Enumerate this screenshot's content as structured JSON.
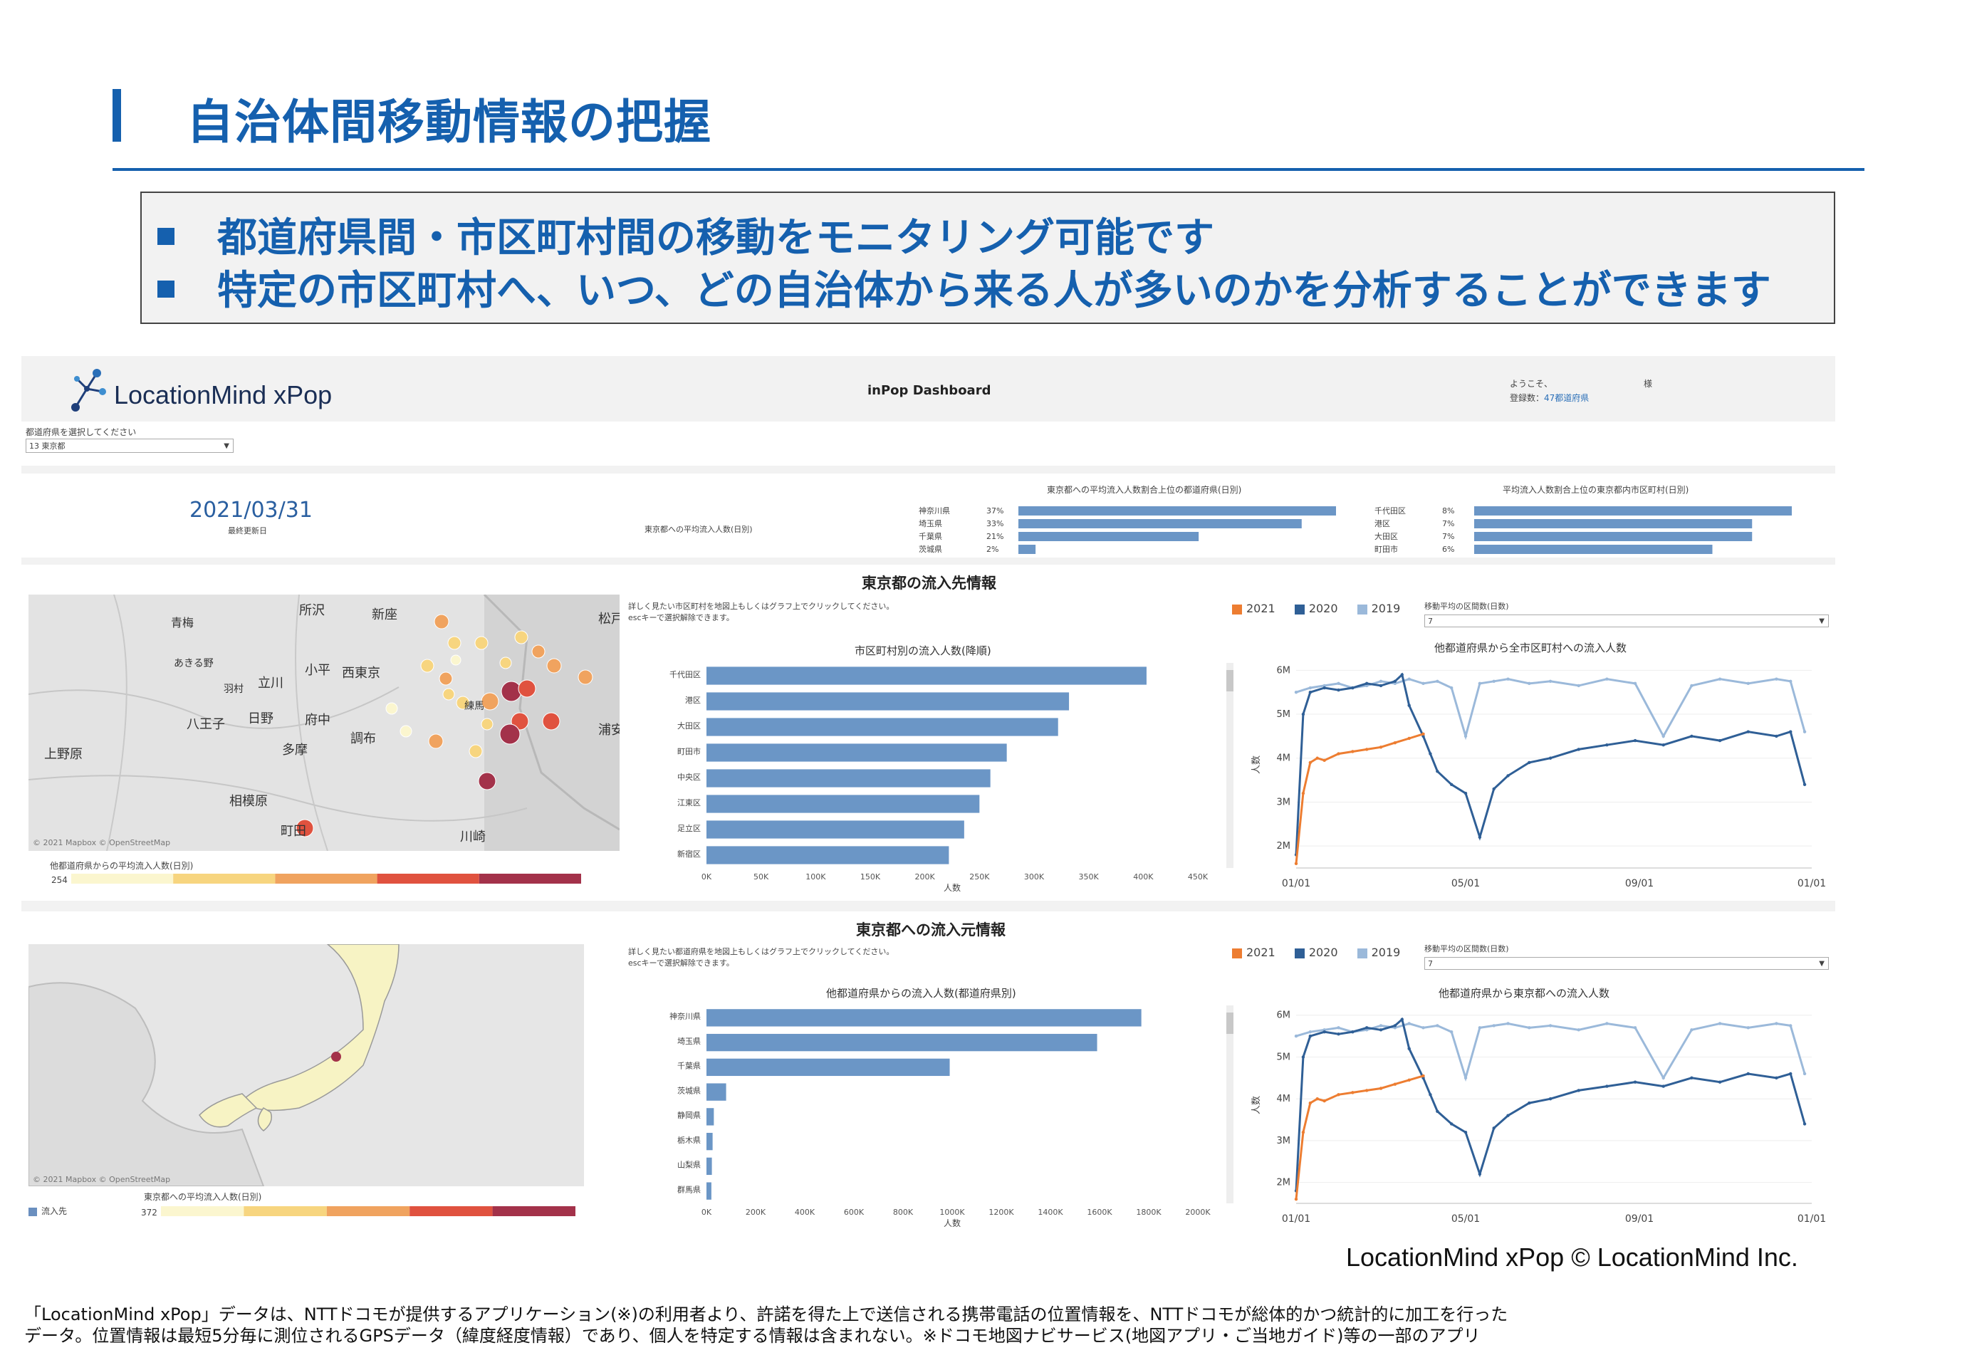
{
  "slide": {
    "title": "自治体間移動情報の把握",
    "bullets": [
      "都道府県間・市区町村間の移動をモニタリング可能です",
      "特定の市区町村へ、いつ、どの自治体から来る人が多いのかを分析することができます"
    ],
    "credit": "LocationMind xPop © LocationMind Inc.",
    "footnote_lines": [
      "「LocationMind xPop」データは、NTTドコモが提供するアプリケーション(※)の利用者より、許諾を得た上で送信される携帯電話の位置情報を、NTTドコモが総体的かつ統計的に加工を行った",
      "データ。位置情報は最短5分毎に測位されるGPSデータ（緯度経度情報）であり、個人を特定する情報は含まれない。※ドコモ地図ナビサービス(地図アプリ・ご当地ガイド)等の一部のアプリ"
    ]
  },
  "dashboard": {
    "logo_text": "LocationMind xPop",
    "title": "inPop Dashboard",
    "welcome": "ようこそ、",
    "honorific": "様",
    "registered_label": "登録数：",
    "registered_value": "47都道府県",
    "prefecture_select_label": "都道府県を選択してください",
    "prefecture_selected": "13 東京都",
    "date": "2021/03/31",
    "date_caption": "最終更新日",
    "avg_inflow_label": "東京都への平均流入人数(日別)",
    "top_prefs": {
      "title": "東京都への平均流入人数割合上位の都道府県(日別)",
      "rows": [
        {
          "name": "神奈川県",
          "pct": "37%",
          "value": 37
        },
        {
          "name": "埼玉県",
          "pct": "33%",
          "value": 33
        },
        {
          "name": "千葉県",
          "pct": "21%",
          "value": 21
        },
        {
          "name": "茨城県",
          "pct": "2%",
          "value": 2
        }
      ]
    },
    "top_munis": {
      "title": "平均流入人数割合上位の東京都内市区町村(日別)",
      "rows": [
        {
          "name": "千代田区",
          "pct": "8%",
          "value": 8
        },
        {
          "name": "港区",
          "pct": "7%",
          "value": 7
        },
        {
          "name": "大田区",
          "pct": "7%",
          "value": 7
        },
        {
          "name": "町田市",
          "pct": "6%",
          "value": 6
        }
      ]
    },
    "section1": {
      "title": "東京都の流入先情報",
      "hint1": "詳しく見たい市区町村を地図上もしくはグラフ上でクリックしてください。",
      "hint2": "escキーで選択解除できます。",
      "map_credit": "© 2021 Mapbox © OpenStreetMap",
      "map_labels": [
        "所沢",
        "新座",
        "青梅",
        "あきる野",
        "羽村",
        "小平",
        "西東京",
        "立川",
        "八王子",
        "日野",
        "府中",
        "調布",
        "上野原",
        "多摩",
        "相模原",
        "町田",
        "川崎",
        "浦安",
        "松戸",
        "練馬"
      ],
      "colorbar_label": "他都道府県からの平均流入人数(日別)",
      "colorbar_min": "254",
      "colorbar_colors": [
        "#fbf6cf",
        "#f7d57f",
        "#f0a35f",
        "#e0523f",
        "#a3324a"
      ],
      "legend": [
        {
          "label": "2021",
          "color": "#ed7d31"
        },
        {
          "label": "2020",
          "color": "#2f5f96"
        },
        {
          "label": "2019",
          "color": "#9bb9da"
        }
      ],
      "ma_label": "移動平均の区間数(日数)",
      "ma_value": "7",
      "bar_title": "市区町村別の流入人数(降順)",
      "line_title": "他都道府県から全市区町村への流入人数"
    },
    "section2": {
      "title": "東京都への流入元情報",
      "hint1": "詳しく見たい都道府県を地図上もしくはグラフ上でクリックしてください。",
      "hint2": "escキーで選択解除できます。",
      "map_credit": "© 2021 Mapbox © OpenStreetMap",
      "map_legend_label": "流入先",
      "colorbar_label": "東京都への平均流入人数(日別)",
      "colorbar_min": "372",
      "colorbar_colors": [
        "#fbf6cf",
        "#f7d57f",
        "#f0a35f",
        "#e0523f",
        "#a3324a"
      ],
      "legend": [
        {
          "label": "2021",
          "color": "#ed7d31"
        },
        {
          "label": "2020",
          "color": "#2f5f96"
        },
        {
          "label": "2019",
          "color": "#9bb9da"
        }
      ],
      "ma_label": "移動平均の区間数(日数)",
      "ma_value": "7",
      "bar_title": "他都道府県からの流入人数(都道府県別)",
      "line_title": "他都道府県から東京都への流入人数"
    }
  },
  "chart_data": [
    {
      "type": "bar",
      "orientation": "horizontal",
      "title": "市区町村別の流入人数(降順)",
      "categories": [
        "千代田区",
        "港区",
        "大田区",
        "町田市",
        "中央区",
        "江東区",
        "足立区",
        "新宿区"
      ],
      "values": [
        403000,
        332000,
        322000,
        275000,
        260000,
        250000,
        236000,
        222000
      ],
      "xlabel": "人数",
      "xticks": [
        "0K",
        "50K",
        "100K",
        "150K",
        "200K",
        "250K",
        "300K",
        "350K",
        "400K",
        "450K"
      ],
      "xlim": [
        0,
        450000
      ]
    },
    {
      "type": "bar",
      "orientation": "horizontal",
      "title": "他都道府県からの流入人数(都道府県別)",
      "categories": [
        "神奈川県",
        "埼玉県",
        "千葉県",
        "茨城県",
        "静岡県",
        "栃木県",
        "山梨県",
        "群馬県"
      ],
      "values": [
        1770000,
        1590000,
        990000,
        80000,
        30000,
        25000,
        22000,
        20000
      ],
      "xlabel": "人数",
      "xticks": [
        "0K",
        "200K",
        "400K",
        "600K",
        "800K",
        "1000K",
        "1200K",
        "1400K",
        "1600K",
        "1800K",
        "2000K"
      ],
      "xlim": [
        0,
        2000000
      ]
    },
    {
      "type": "line",
      "title": "他都道府県から全市区町村への流入人数",
      "ylabel": "人数",
      "ylim": [
        1500000,
        6200000
      ],
      "yticks": [
        "2M",
        "3M",
        "4M",
        "5M",
        "6M"
      ],
      "xticks": [
        "01/01",
        "05/01",
        "09/01",
        "01/01"
      ],
      "series": [
        {
          "name": "2021",
          "x": [
            0,
            5,
            10,
            15,
            20,
            30,
            40,
            50,
            60,
            70,
            80,
            90
          ],
          "values": [
            1600000,
            3200000,
            3900000,
            4000000,
            3950000,
            4100000,
            4150000,
            4200000,
            4250000,
            4350000,
            4450000,
            4550000
          ]
        },
        {
          "name": "2020",
          "x": [
            0,
            5,
            10,
            20,
            30,
            40,
            50,
            60,
            70,
            75,
            80,
            90,
            95,
            100,
            110,
            120,
            130,
            140,
            150,
            165,
            180,
            200,
            220,
            240,
            260,
            280,
            300,
            320,
            340,
            350,
            360
          ],
          "values": [
            1800000,
            5000000,
            5500000,
            5600000,
            5550000,
            5600000,
            5700000,
            5650000,
            5750000,
            5900000,
            5200000,
            4500000,
            4100000,
            3700000,
            3400000,
            3200000,
            2200000,
            3300000,
            3600000,
            3900000,
            4000000,
            4200000,
            4300000,
            4400000,
            4300000,
            4500000,
            4400000,
            4600000,
            4500000,
            4600000,
            3400000
          ]
        },
        {
          "name": "2019",
          "x": [
            0,
            10,
            20,
            30,
            40,
            50,
            60,
            70,
            80,
            90,
            100,
            110,
            120,
            130,
            140,
            150,
            165,
            180,
            200,
            220,
            240,
            260,
            280,
            300,
            320,
            340,
            350,
            360
          ],
          "values": [
            5500000,
            5600000,
            5650000,
            5700000,
            5600000,
            5650000,
            5750000,
            5700000,
            5800000,
            5700000,
            5750000,
            5600000,
            4500000,
            5700000,
            5750000,
            5800000,
            5700000,
            5750000,
            5650000,
            5800000,
            5700000,
            4500000,
            5650000,
            5800000,
            5700000,
            5800000,
            5750000,
            4600000
          ]
        }
      ]
    },
    {
      "type": "line",
      "title": "他都道府県から東京都への流入人数",
      "ylabel": "人数",
      "ylim": [
        1500000,
        6200000
      ],
      "yticks": [
        "2M",
        "3M",
        "4M",
        "5M",
        "6M"
      ],
      "xticks": [
        "01/01",
        "05/01",
        "09/01",
        "01/01"
      ],
      "series": [
        {
          "name": "2021",
          "x": [
            0,
            5,
            10,
            15,
            20,
            30,
            40,
            50,
            60,
            70,
            80,
            90
          ],
          "values": [
            1600000,
            3200000,
            3900000,
            4000000,
            3950000,
            4100000,
            4150000,
            4200000,
            4250000,
            4350000,
            4450000,
            4550000
          ]
        },
        {
          "name": "2020",
          "x": [
            0,
            5,
            10,
            20,
            30,
            40,
            50,
            60,
            70,
            75,
            80,
            90,
            95,
            100,
            110,
            120,
            130,
            140,
            150,
            165,
            180,
            200,
            220,
            240,
            260,
            280,
            300,
            320,
            340,
            350,
            360
          ],
          "values": [
            1800000,
            5000000,
            5500000,
            5600000,
            5550000,
            5600000,
            5700000,
            5650000,
            5750000,
            5900000,
            5200000,
            4500000,
            4100000,
            3700000,
            3400000,
            3200000,
            2200000,
            3300000,
            3600000,
            3900000,
            4000000,
            4200000,
            4300000,
            4400000,
            4300000,
            4500000,
            4400000,
            4600000,
            4500000,
            4600000,
            3400000
          ]
        },
        {
          "name": "2019",
          "x": [
            0,
            10,
            20,
            30,
            40,
            50,
            60,
            70,
            80,
            90,
            100,
            110,
            120,
            130,
            140,
            150,
            165,
            180,
            200,
            220,
            240,
            260,
            280,
            300,
            320,
            340,
            350,
            360
          ],
          "values": [
            5500000,
            5600000,
            5650000,
            5700000,
            5600000,
            5650000,
            5750000,
            5700000,
            5800000,
            5700000,
            5750000,
            5600000,
            4500000,
            5700000,
            5750000,
            5800000,
            5700000,
            5750000,
            5650000,
            5800000,
            5700000,
            4500000,
            5650000,
            5800000,
            5700000,
            5800000,
            5750000,
            4600000
          ]
        }
      ]
    }
  ]
}
